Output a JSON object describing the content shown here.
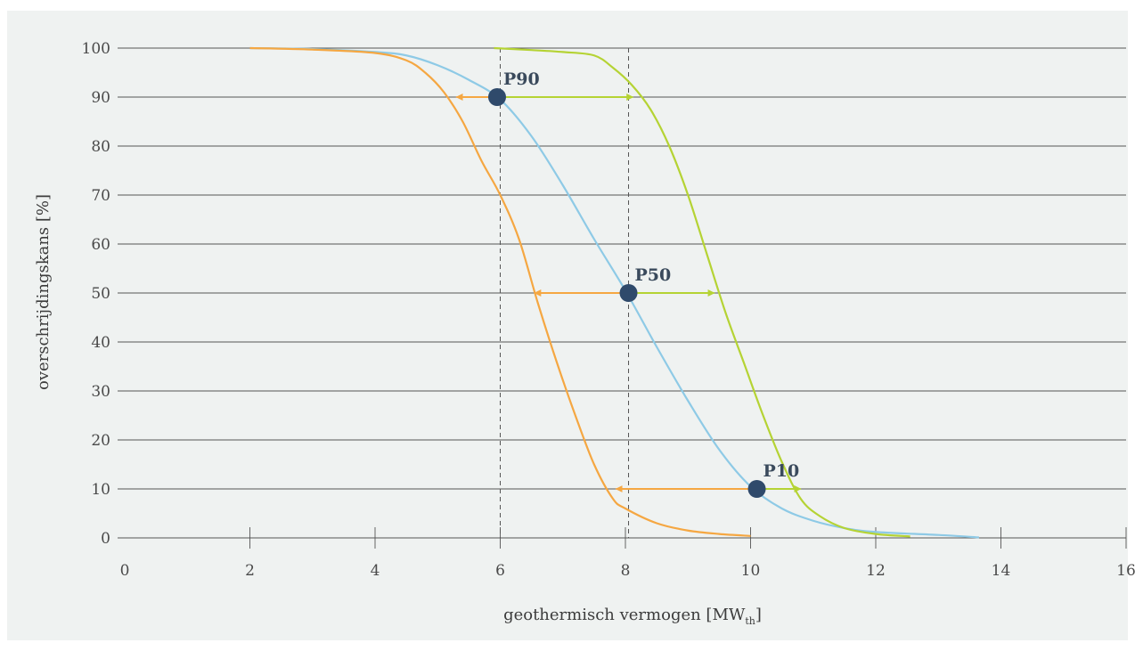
{
  "chart_data": {
    "type": "line",
    "xlabel": "geothermisch vermogen [MW",
    "xlabel_sub": "th",
    "xlabel_end": "]",
    "ylabel": "overschrijdingskans [%]",
    "xlim": [
      0,
      16
    ],
    "ylim": [
      0,
      100
    ],
    "x_ticks": [
      0,
      2,
      4,
      6,
      8,
      10,
      12,
      14,
      16
    ],
    "y_ticks": [
      0,
      10,
      20,
      30,
      40,
      50,
      60,
      70,
      80,
      90,
      100
    ],
    "grid": "horizontal",
    "colors": {
      "blue": "#8ecae6",
      "orange": "#f5a742",
      "green": "#b5d334",
      "point": "#2f4a6b",
      "grid": "#555555",
      "dashed": "#555555"
    },
    "series": [
      {
        "color_key": "blue",
        "points": [
          [
            2.0,
            100
          ],
          [
            3.0,
            99.8
          ],
          [
            4.0,
            99.2
          ],
          [
            4.5,
            98.5
          ],
          [
            5.0,
            96.5
          ],
          [
            5.5,
            93.5
          ],
          [
            6.0,
            89.5
          ],
          [
            6.5,
            82
          ],
          [
            7.0,
            72
          ],
          [
            7.5,
            61
          ],
          [
            8.0,
            50.5
          ],
          [
            8.5,
            39
          ],
          [
            9.0,
            28
          ],
          [
            9.5,
            18
          ],
          [
            10.0,
            10.5
          ],
          [
            10.5,
            6
          ],
          [
            11.0,
            3.5
          ],
          [
            11.5,
            2
          ],
          [
            12.0,
            1.2
          ],
          [
            13.0,
            0.6
          ],
          [
            13.65,
            0.1
          ]
        ]
      },
      {
        "color_key": "orange",
        "points": [
          [
            2.0,
            100
          ],
          [
            3.0,
            99.7
          ],
          [
            4.0,
            99
          ],
          [
            4.5,
            97.5
          ],
          [
            4.8,
            95
          ],
          [
            5.1,
            91
          ],
          [
            5.4,
            85
          ],
          [
            5.7,
            77
          ],
          [
            6.0,
            70
          ],
          [
            6.3,
            61
          ],
          [
            6.6,
            48
          ],
          [
            6.9,
            36
          ],
          [
            7.2,
            25
          ],
          [
            7.5,
            15
          ],
          [
            7.8,
            8
          ],
          [
            8.0,
            6
          ],
          [
            8.5,
            3
          ],
          [
            9.0,
            1.5
          ],
          [
            9.5,
            0.8
          ],
          [
            10.0,
            0.4
          ]
        ]
      },
      {
        "color_key": "green",
        "points": [
          [
            5.9,
            100
          ],
          [
            6.5,
            99.6
          ],
          [
            7.0,
            99.2
          ],
          [
            7.5,
            98.5
          ],
          [
            7.8,
            96
          ],
          [
            8.1,
            92.5
          ],
          [
            8.4,
            87.5
          ],
          [
            8.7,
            80
          ],
          [
            9.0,
            70
          ],
          [
            9.3,
            58
          ],
          [
            9.6,
            46
          ],
          [
            9.9,
            35.5
          ],
          [
            10.2,
            25
          ],
          [
            10.5,
            15.5
          ],
          [
            10.8,
            8
          ],
          [
            11.1,
            4.5
          ],
          [
            11.5,
            2
          ],
          [
            12.0,
            0.8
          ],
          [
            12.55,
            0.3
          ]
        ]
      }
    ],
    "dashed_verticals": [
      6.0,
      8.05
    ],
    "markers": [
      {
        "label": "P90",
        "x": 5.95,
        "y": 90,
        "left_x": 5.3,
        "right_x": 8.12
      },
      {
        "label": "P50",
        "x": 8.05,
        "y": 50,
        "left_x": 6.55,
        "right_x": 9.42
      },
      {
        "label": "P10",
        "x": 10.1,
        "y": 10,
        "left_x": 7.85,
        "right_x": 10.8
      }
    ]
  }
}
